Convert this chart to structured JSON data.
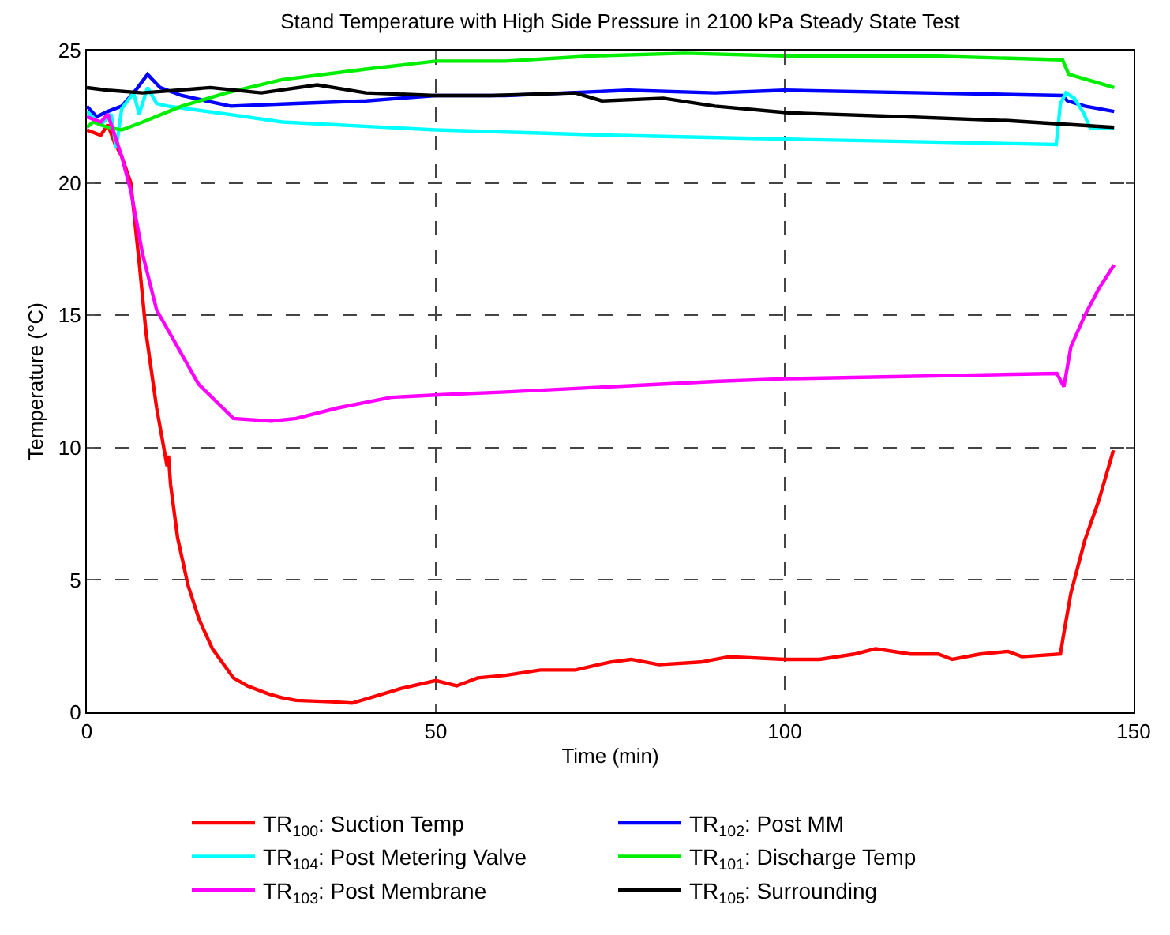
{
  "chart_data": {
    "type": "line",
    "title": "Stand Temperature with High Side Pressure in 2100 kPa Steady State Test",
    "xlabel": "Time (min)",
    "ylabel": "Temperature (°C)",
    "xlim": [
      0,
      150
    ],
    "xticks": [
      0,
      50,
      100,
      150
    ],
    "ylim": [
      0,
      25
    ],
    "yticks": [
      0,
      5,
      10,
      15,
      20,
      25
    ],
    "grid": true,
    "legend": "bottom",
    "line_style": "solid",
    "marker": "none",
    "series": [
      {
        "name": "TR$_{100}$: Suction Temp",
        "color": "#ff0000",
        "x": [
          0,
          2,
          3,
          4,
          5,
          6.3,
          7.5,
          8.5,
          10,
          11.5,
          11.7,
          12,
          13,
          14.5,
          16.1,
          18,
          21,
          23,
          26,
          28,
          30,
          35,
          38,
          40,
          45,
          50,
          53,
          56,
          60,
          65,
          70,
          75,
          78,
          82,
          88,
          92,
          100,
          105,
          110,
          113,
          118,
          122,
          124,
          128,
          132,
          134,
          139.5,
          140,
          141,
          143,
          145,
          147.1
        ],
        "values": [
          22.0,
          21.8,
          22.2,
          21.5,
          21.0,
          20.0,
          17.0,
          14.3,
          11.5,
          9.3,
          9.7,
          8.6,
          6.6,
          4.8,
          3.5,
          2.4,
          1.3,
          1.0,
          0.7,
          0.55,
          0.45,
          0.4,
          0.35,
          0.5,
          0.9,
          1.2,
          1.0,
          1.3,
          1.4,
          1.6,
          1.6,
          1.9,
          2.0,
          1.8,
          1.9,
          2.1,
          2.0,
          2.0,
          2.2,
          2.4,
          2.2,
          2.2,
          2.0,
          2.2,
          2.3,
          2.1,
          2.2,
          3.0,
          4.5,
          6.5,
          8.0,
          9.9
        ]
      },
      {
        "name": "TR$_{102}$: Post MM",
        "color": "#0000ff",
        "x": [
          0,
          1.4,
          3,
          5,
          7,
          8.7,
          10.5,
          13.6,
          20.6,
          30,
          40,
          50,
          60,
          77.6,
          90,
          100,
          120,
          139.8,
          140.5,
          143,
          147.2
        ],
        "values": [
          22.9,
          22.5,
          22.7,
          22.9,
          23.5,
          24.1,
          23.6,
          23.3,
          22.9,
          23.0,
          23.1,
          23.3,
          23.3,
          23.5,
          23.4,
          23.5,
          23.4,
          23.3,
          23.1,
          22.9,
          22.7
        ]
      },
      {
        "name": "TR$_{104}$: Post Metering Valve",
        "color": "#00ffff",
        "x": [
          0,
          2,
          3.5,
          4.2,
          5,
          6.7,
          7.5,
          8.7,
          10,
          11.6,
          20,
          28,
          50,
          75,
          100.5,
          120,
          138.9,
          139.5,
          140.3,
          141.5,
          142.8,
          143.8,
          147.2
        ],
        "values": [
          22.7,
          22.2,
          22.6,
          21.3,
          22.8,
          23.4,
          22.6,
          23.6,
          23.0,
          22.9,
          22.6,
          22.3,
          22.0,
          21.8,
          21.65,
          21.55,
          21.45,
          23.0,
          23.4,
          23.2,
          22.65,
          22.05,
          22.05
        ]
      },
      {
        "name": "TR$_{101}$: Discharge Temp",
        "color": "#00ee00",
        "x": [
          0,
          0.9,
          3,
          5,
          8,
          13.6,
          20,
          28,
          40,
          50,
          60,
          72.7,
          85.6,
          100,
          120,
          139.8,
          140.7,
          147.2
        ],
        "values": [
          22.1,
          22.3,
          22.1,
          22.0,
          22.3,
          22.9,
          23.4,
          23.9,
          24.3,
          24.6,
          24.6,
          24.8,
          24.9,
          24.8,
          24.8,
          24.65,
          24.1,
          23.6
        ]
      },
      {
        "name": "TR$_{103}$: Post Membrane",
        "color": "#ff00ff",
        "x": [
          0,
          2,
          3,
          4,
          5,
          6.3,
          8,
          10,
          13,
          16,
          21,
          26.4,
          30,
          36,
          43.6,
          51,
          60,
          75,
          90,
          100,
          120,
          139,
          140,
          141,
          143,
          145,
          147.2
        ],
        "values": [
          22.5,
          22.3,
          22.6,
          21.8,
          21.0,
          19.7,
          17.3,
          15.2,
          13.8,
          12.4,
          11.1,
          11.0,
          11.1,
          11.5,
          11.9,
          12.0,
          12.1,
          12.3,
          12.5,
          12.6,
          12.7,
          12.8,
          12.3,
          13.8,
          15.0,
          16.0,
          16.9
        ]
      },
      {
        "name": "TR$_{105}$: Surrounding",
        "color": "#000000",
        "x": [
          0,
          3,
          8,
          17.7,
          25,
          33,
          40,
          50,
          58,
          70,
          73.8,
          82.6,
          90,
          100.5,
          117,
          132,
          147.2
        ],
        "values": [
          23.6,
          23.5,
          23.4,
          23.6,
          23.4,
          23.7,
          23.4,
          23.3,
          23.3,
          23.4,
          23.1,
          23.2,
          22.9,
          22.65,
          22.5,
          22.35,
          22.1
        ]
      }
    ]
  }
}
